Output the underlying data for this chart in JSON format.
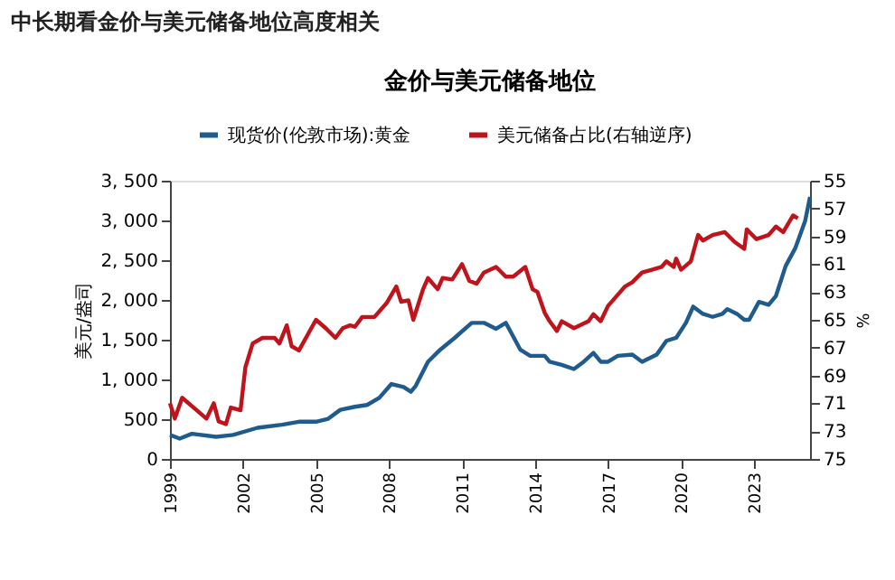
{
  "chart_data": {
    "type": "line",
    "title": "中长期看金价与美元储备地位高度相关",
    "subtitle": "金价与美元储备地位",
    "ylabel": "美元/盎司",
    "y2label": "%",
    "xlim": [
      1999,
      2025.3
    ],
    "xticks": [
      1999,
      2002,
      2005,
      2008,
      2011,
      2014,
      2017,
      2020,
      2023
    ],
    "ylim": [
      0,
      3500
    ],
    "yticks": [
      0,
      500,
      {
        "value": 1000,
        "label": "1, 000"
      },
      {
        "value": 1500,
        "label": "1, 500"
      },
      {
        "value": 2000,
        "label": "2, 000"
      },
      {
        "value": 2500,
        "label": "2, 500"
      },
      {
        "value": 3000,
        "label": "3, 000"
      },
      {
        "value": 3500,
        "label": "3, 500"
      }
    ],
    "y2lim": [
      75,
      55
    ],
    "y2ticks": [
      55,
      57,
      59,
      61,
      63,
      65,
      67,
      69,
      71,
      73,
      75
    ],
    "grid": false,
    "legend": "top",
    "marker": "none",
    "line_style": "solid",
    "series": [
      {
        "name": "现货价(伦敦市场):黄金",
        "color": "#1f5b8c",
        "x": [
          1999.0,
          1999.4,
          1999.9,
          2000.9,
          2001.6,
          2002.6,
          2003.6,
          2004.3,
          2005.0,
          2005.5,
          2006.0,
          2006.6,
          2007.1,
          2007.6,
          2008.1,
          2008.6,
          2008.9,
          2009.1,
          2009.6,
          2010.1,
          2010.7,
          2011.4,
          2011.9,
          2012.4,
          2012.8,
          2013.0,
          2013.4,
          2013.8,
          2014.4,
          2014.6,
          2015.1,
          2015.6,
          2016.0,
          2016.4,
          2016.7,
          2017.0,
          2017.4,
          2018.0,
          2018.4,
          2019.0,
          2019.4,
          2019.8,
          2020.2,
          2020.5,
          2020.9,
          2021.3,
          2021.7,
          2021.9,
          2022.3,
          2022.6,
          2022.8,
          2023.2,
          2023.6,
          2023.9,
          2024.3,
          2024.7,
          2025.1,
          2025.3
        ],
        "values": [
          302,
          256,
          317,
          279,
          302,
          392,
          430,
          468,
          468,
          505,
          618,
          656,
          679,
          769,
          943,
          905,
          845,
          920,
          1222,
          1373,
          1523,
          1712,
          1712,
          1637,
          1712,
          1599,
          1373,
          1297,
          1297,
          1222,
          1184,
          1131,
          1222,
          1335,
          1222,
          1222,
          1297,
          1312,
          1222,
          1312,
          1486,
          1523,
          1712,
          1916,
          1825,
          1787,
          1825,
          1885,
          1825,
          1750,
          1750,
          1976,
          1938,
          2051,
          2428,
          2655,
          2994,
          3296
        ]
      },
      {
        "name": "美元储备占比(右轴逆序)",
        "color": "#c0141c",
        "axis": "y2",
        "x": [
          1999.0,
          1999.2,
          1999.5,
          2000.1,
          2000.5,
          2000.8,
          2001.0,
          2001.3,
          2001.5,
          2001.9,
          2002.1,
          2002.4,
          2002.8,
          2003.3,
          2003.5,
          2003.8,
          2004.0,
          2004.3,
          2005.0,
          2005.4,
          2005.8,
          2006.1,
          2006.4,
          2006.6,
          2006.9,
          2007.4,
          2007.9,
          2008.3,
          2008.5,
          2008.8,
          2009.0,
          2009.4,
          2009.6,
          2010.0,
          2010.2,
          2010.6,
          2011.0,
          2011.3,
          2011.6,
          2011.9,
          2012.4,
          2012.8,
          2013.1,
          2013.6,
          2013.9,
          2014.1,
          2014.4,
          2014.6,
          2014.9,
          2015.1,
          2015.6,
          2016.2,
          2016.4,
          2016.7,
          2017.0,
          2017.3,
          2017.7,
          2018.0,
          2018.4,
          2018.8,
          2019.2,
          2019.4,
          2019.7,
          2019.8,
          2020.0,
          2020.4,
          2020.7,
          2020.9,
          2021.3,
          2021.8,
          2022.2,
          2022.6,
          2022.7,
          2023.1,
          2023.6,
          2023.9,
          2024.2,
          2024.6,
          2024.8
        ],
        "values": [
          71.0,
          72.1,
          70.6,
          71.5,
          72.1,
          71.0,
          72.3,
          72.5,
          71.3,
          71.5,
          68.4,
          66.7,
          66.3,
          66.3,
          66.7,
          65.4,
          66.9,
          67.2,
          65.0,
          65.6,
          66.3,
          65.6,
          65.4,
          65.5,
          64.8,
          64.8,
          63.8,
          62.6,
          63.7,
          63.6,
          65.0,
          62.8,
          62.0,
          62.8,
          62.0,
          62.1,
          61.0,
          62.2,
          62.4,
          61.6,
          61.2,
          61.9,
          61.9,
          61.2,
          62.8,
          63.0,
          64.5,
          65.1,
          65.8,
          65.1,
          65.6,
          65.1,
          64.6,
          65.1,
          64.0,
          63.4,
          62.6,
          62.3,
          61.6,
          61.4,
          61.2,
          60.8,
          61.2,
          60.6,
          61.4,
          60.8,
          58.9,
          59.3,
          58.9,
          58.7,
          59.4,
          59.9,
          58.5,
          59.2,
          58.9,
          58.3,
          58.7,
          57.5,
          57.7
        ]
      }
    ]
  }
}
